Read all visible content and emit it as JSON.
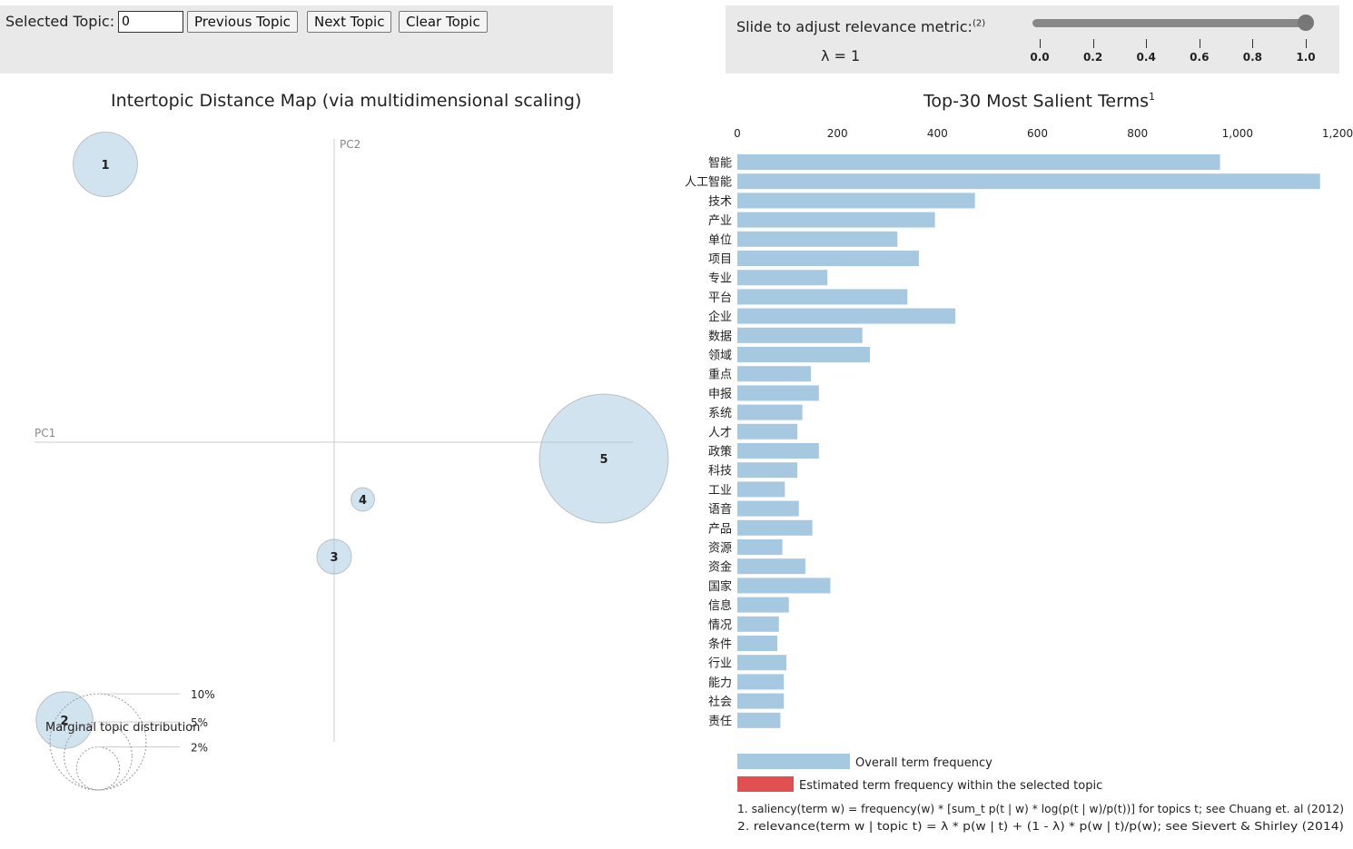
{
  "controls": {
    "selected_topic_label": "Selected Topic:",
    "selected_topic_value": "0",
    "prev_label": "Previous Topic",
    "next_label": "Next Topic",
    "clear_label": "Clear Topic",
    "slider_label": "Slide to adjust relevance metric:",
    "slider_sup": "(2)",
    "lambda_text": "λ = 1",
    "lambda_value": 1,
    "slider_ticks": [
      "0.0",
      "0.2",
      "0.4",
      "0.6",
      "0.8",
      "1.0"
    ]
  },
  "chart_data": [
    {
      "type": "scatter",
      "title": "Intertopic Distance Map (via multidimensional scaling)",
      "xlabel": "PC1",
      "ylabel": "PC2",
      "topics": [
        {
          "id": "1",
          "pc1": -0.28,
          "pc2": 0.34,
          "size_pct": 4.5
        },
        {
          "id": "2",
          "pc1": -0.33,
          "pc2": -0.34,
          "size_pct": 3.5
        },
        {
          "id": "3",
          "pc1": 0.0,
          "pc2": -0.14,
          "size_pct": 1.3
        },
        {
          "id": "4",
          "pc1": 0.035,
          "pc2": -0.07,
          "size_pct": 0.6
        },
        {
          "id": "5",
          "pc1": 0.33,
          "pc2": -0.02,
          "size_pct": 18.0
        }
      ],
      "legend": {
        "title": "Marginal topic distribution",
        "items": [
          {
            "label": "2%",
            "pct": 2
          },
          {
            "label": "5%",
            "pct": 5
          },
          {
            "label": "10%",
            "pct": 10
          }
        ]
      }
    },
    {
      "type": "bar",
      "title": "Top-30 Most Salient Terms",
      "title_sup": "1",
      "xlim": [
        0,
        1200
      ],
      "xticks": [
        0,
        200,
        400,
        600,
        800,
        1000,
        1200
      ],
      "xtick_labels": [
        "0",
        "200",
        "400",
        "600",
        "800",
        "1,000",
        "1,200"
      ],
      "categories": [
        "智能",
        "人工智能",
        "技术",
        "产业",
        "单位",
        "项目",
        "专业",
        "平台",
        "企业",
        "数据",
        "领域",
        "重点",
        "申报",
        "系统",
        "人才",
        "政策",
        "科技",
        "工业",
        "语音",
        "产品",
        "资源",
        "资金",
        "国家",
        "信息",
        "情况",
        "条件",
        "行业",
        "能力",
        "社会",
        "责任"
      ],
      "values": [
        965,
        1165,
        475,
        395,
        320,
        363,
        180,
        340,
        436,
        250,
        265,
        147,
        163,
        130,
        120,
        163,
        120,
        95,
        123,
        150,
        90,
        136,
        186,
        103,
        83,
        80,
        98,
        93,
        93,
        86
      ],
      "colors": {
        "overall": "#a6c8e1",
        "topic": "#e05050"
      },
      "legend": {
        "overall": "Overall term frequency",
        "topic": "Estimated term frequency within the selected topic"
      },
      "footnotes": [
        "1. saliency(term w) = frequency(w) * [sum_t p(t | w) * log(p(t | w)/p(t))] for topics t; see Chuang et. al (2012)",
        "2. relevance(term w | topic t) = λ * p(w | t) + (1 - λ) * p(w | t)/p(w); see Sievert & Shirley (2014)"
      ]
    }
  ]
}
